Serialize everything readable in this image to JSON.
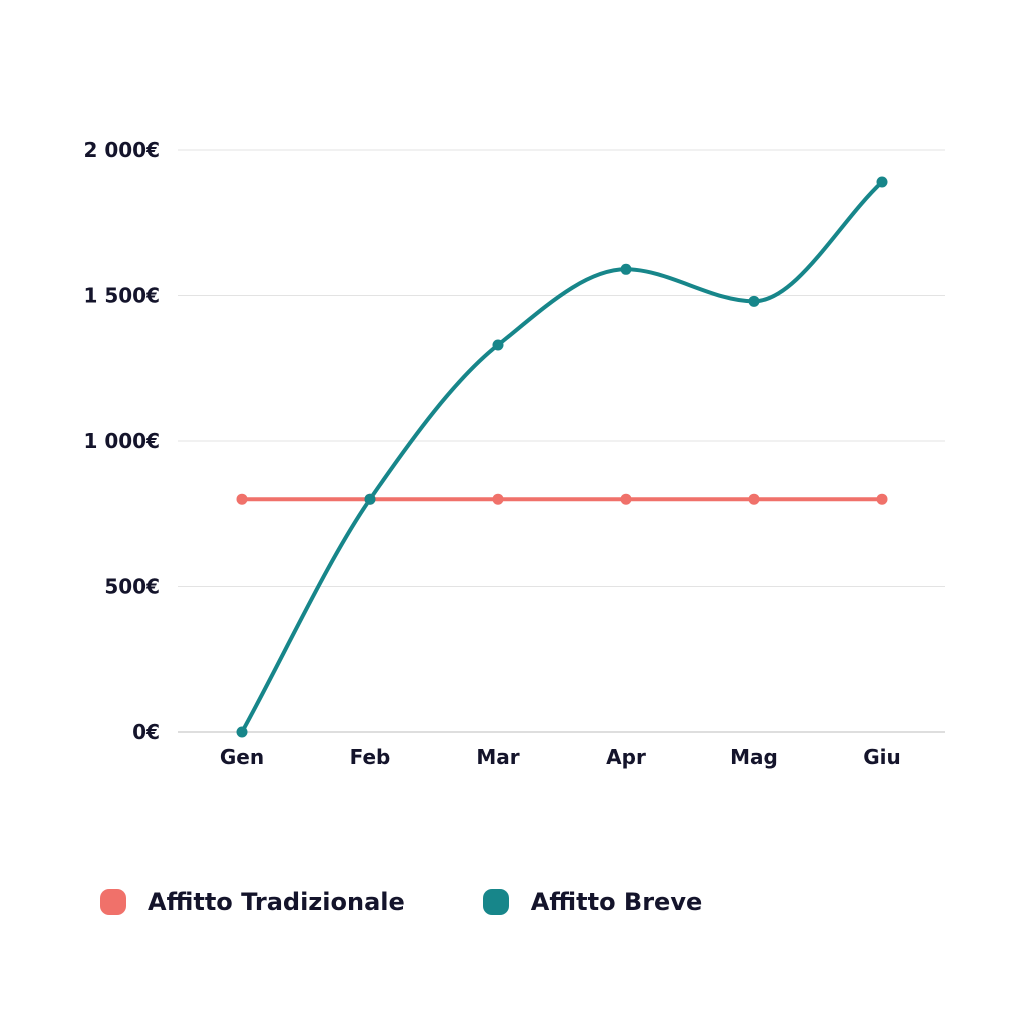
{
  "colors": {
    "axis_text": "#14142b",
    "grid": "#e3e3e3",
    "axis": "#bdbdbd"
  },
  "chart_data": {
    "type": "line",
    "title": "",
    "xlabel": "",
    "ylabel": "",
    "categories": [
      "Gen",
      "Feb",
      "Mar",
      "Apr",
      "Mag",
      "Giu"
    ],
    "ylim": [
      0,
      2000
    ],
    "yticks": [
      0,
      500,
      1000,
      1500,
      2000
    ],
    "ytick_labels": [
      "0€",
      "500€",
      "1 000€",
      "1 500€",
      "2 000€"
    ],
    "grid": true,
    "smooth": true,
    "legend_position": "bottom",
    "series": [
      {
        "name": "Affitto Tradizionale",
        "color": "#f0716a",
        "values": [
          800,
          800,
          800,
          800,
          800,
          800
        ]
      },
      {
        "name": "Affitto Breve",
        "color": "#17868a",
        "values": [
          0,
          800,
          1330,
          1590,
          1480,
          1890
        ]
      }
    ]
  }
}
